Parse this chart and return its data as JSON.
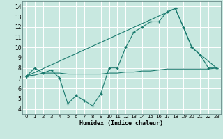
{
  "xlabel": "Humidex (Indice chaleur)",
  "bg_color": "#c8e8e0",
  "grid_color": "#ffffff",
  "line_color": "#1a7a6e",
  "xlim": [
    -0.5,
    23.5
  ],
  "ylim": [
    3.5,
    14.5
  ],
  "xticks": [
    0,
    1,
    2,
    3,
    4,
    5,
    6,
    7,
    8,
    9,
    10,
    11,
    12,
    13,
    14,
    15,
    16,
    17,
    18,
    19,
    20,
    21,
    22,
    23
  ],
  "yticks": [
    4,
    5,
    6,
    7,
    8,
    9,
    10,
    11,
    12,
    13,
    14
  ],
  "line1_x": [
    0,
    1,
    2,
    3,
    4,
    5,
    6,
    7,
    8,
    9,
    10,
    11,
    12,
    13,
    14,
    15,
    16,
    17,
    18,
    19,
    20,
    21,
    22,
    23
  ],
  "line1_y": [
    7.2,
    8.0,
    7.5,
    7.8,
    7.0,
    4.5,
    5.3,
    4.8,
    4.3,
    5.5,
    8.0,
    8.0,
    10.0,
    11.5,
    12.0,
    12.5,
    12.5,
    13.5,
    13.8,
    12.0,
    10.0,
    9.3,
    8.0,
    8.0
  ],
  "line2_x": [
    0,
    18,
    20,
    23
  ],
  "line2_y": [
    7.2,
    13.8,
    10.0,
    8.0
  ],
  "line3_x": [
    0,
    1,
    2,
    3,
    4,
    5,
    6,
    7,
    8,
    9,
    10,
    11,
    12,
    13,
    14,
    15,
    16,
    17,
    18,
    19,
    20,
    21,
    22,
    23
  ],
  "line3_y": [
    7.2,
    7.3,
    7.5,
    7.5,
    7.5,
    7.4,
    7.4,
    7.4,
    7.4,
    7.4,
    7.5,
    7.5,
    7.6,
    7.6,
    7.7,
    7.7,
    7.8,
    7.9,
    7.9,
    7.9,
    7.9,
    7.9,
    7.9,
    8.0
  ]
}
